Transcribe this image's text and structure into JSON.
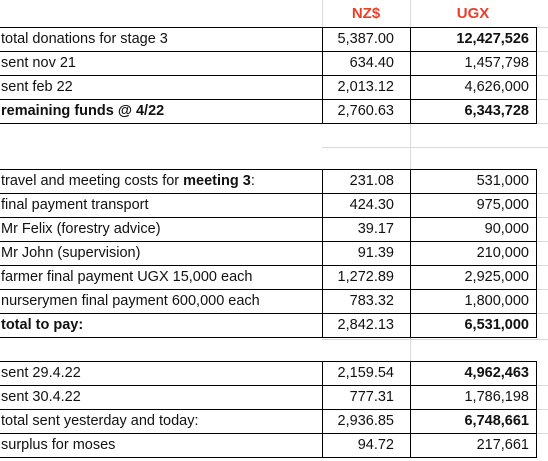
{
  "headers": {
    "nzd": "NZ$",
    "ugx": "UGX"
  },
  "section1": [
    {
      "label": "total donations for stage 3",
      "nzd": "5,387.00",
      "ugx": "12,427,526",
      "label_bold": false,
      "ugx_bold": true
    },
    {
      "label": "sent nov 21",
      "nzd": "634.40",
      "ugx": "1,457,798",
      "label_bold": false,
      "ugx_bold": false
    },
    {
      "label": "sent feb 22",
      "nzd": "2,013.12",
      "ugx": "4,626,000",
      "label_bold": false,
      "ugx_bold": false
    },
    {
      "label": "remaining funds @ 4/22",
      "nzd": "2,760.63",
      "ugx": "6,343,728",
      "label_bold": true,
      "ugx_bold": true
    }
  ],
  "section2": [
    {
      "label": "travel and meeting costs for ",
      "label_emph": "meeting 3",
      "label_tail": ":",
      "nzd": "231.08",
      "ugx": "531,000"
    },
    {
      "label": "final payment transport",
      "nzd": "424.30",
      "ugx": "975,000"
    },
    {
      "label": "Mr Felix (forestry advice)",
      "nzd": "39.17",
      "ugx": "90,000"
    },
    {
      "label": "Mr John (supervision)",
      "nzd": "91.39",
      "ugx": "210,000"
    },
    {
      "label": "farmer final payment UGX 15,000 each",
      "nzd": "1,272.89",
      "ugx": "2,925,000"
    },
    {
      "label": "nurserymen final payment 600,000 each",
      "nzd": "783.32",
      "ugx": "1,800,000"
    },
    {
      "label": "total to pay:",
      "nzd": "2,842.13",
      "ugx": "6,531,000",
      "label_bold": true,
      "ugx_bold": true
    }
  ],
  "section3": [
    {
      "label": "sent 29.4.22",
      "nzd": "2,159.54",
      "ugx": "4,962,463",
      "ugx_bold": true
    },
    {
      "label": "sent 30.4.22",
      "nzd": "777.31",
      "ugx": "1,786,198",
      "ugx_bold": false
    },
    {
      "label": "total sent yesterday and today:",
      "nzd": "2,936.85",
      "ugx": "6,748,661",
      "ugx_bold": true
    },
    {
      "label": "surplus for moses",
      "nzd": "94.72",
      "ugx": "217,661",
      "ugx_bold": false
    }
  ]
}
